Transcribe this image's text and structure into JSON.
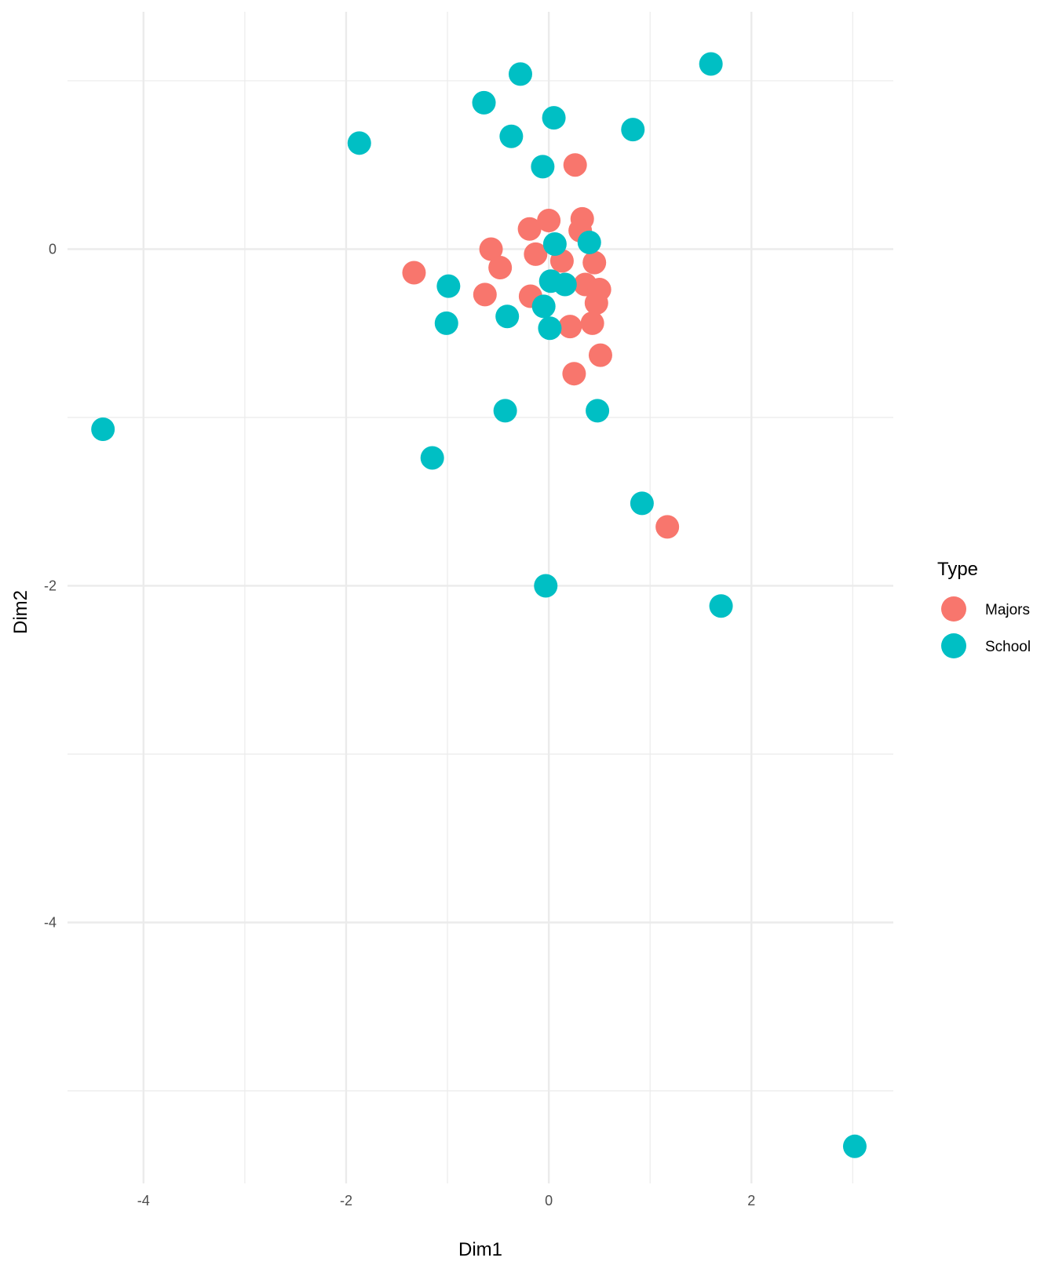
{
  "chart_data": {
    "type": "scatter",
    "title": "",
    "xlabel": "Dim1",
    "ylabel": "Dim2",
    "xlim": [
      -4.75,
      3.4
    ],
    "ylim": [
      -5.55,
      1.41
    ],
    "x_ticks": [
      -4,
      -2,
      0,
      2
    ],
    "x_tick_labels": [
      "-4",
      "-2",
      "0",
      "2"
    ],
    "y_ticks": [
      -4,
      -2,
      0
    ],
    "y_tick_labels": [
      "-4",
      "-2",
      "0"
    ],
    "x_minor_grid": [
      -3,
      -1,
      1,
      3
    ],
    "y_minor_grid": [
      -5,
      -3,
      -1,
      1
    ],
    "grid": true,
    "legend_position": "right",
    "legend": {
      "title": "Type",
      "entries": [
        {
          "label": "Majors",
          "color": "#F8766D"
        },
        {
          "label": "School",
          "color": "#00BFC4"
        }
      ]
    },
    "series": [
      {
        "name": "Majors",
        "color": "#F8766D",
        "points": [
          [
            0.26,
            0.5
          ],
          [
            0.0,
            0.17
          ],
          [
            -0.19,
            0.12
          ],
          [
            0.33,
            0.18
          ],
          [
            0.31,
            0.11
          ],
          [
            -0.57,
            0.0
          ],
          [
            -0.13,
            -0.03
          ],
          [
            0.13,
            -0.07
          ],
          [
            0.45,
            -0.08
          ],
          [
            -0.48,
            -0.11
          ],
          [
            -1.33,
            -0.14
          ],
          [
            0.36,
            -0.21
          ],
          [
            0.5,
            -0.24
          ],
          [
            -0.63,
            -0.27
          ],
          [
            -0.18,
            -0.28
          ],
          [
            0.47,
            -0.32
          ],
          [
            0.21,
            -0.46
          ],
          [
            0.43,
            -0.44
          ],
          [
            0.51,
            -0.63
          ],
          [
            0.25,
            -0.74
          ],
          [
            1.17,
            -1.65
          ]
        ]
      },
      {
        "name": "School",
        "color": "#00BFC4",
        "points": [
          [
            1.6,
            1.1
          ],
          [
            -0.28,
            1.04
          ],
          [
            -0.64,
            0.87
          ],
          [
            0.05,
            0.78
          ],
          [
            0.83,
            0.71
          ],
          [
            -0.37,
            0.67
          ],
          [
            -1.87,
            0.63
          ],
          [
            -0.06,
            0.49
          ],
          [
            0.06,
            0.03
          ],
          [
            0.4,
            0.04
          ],
          [
            0.02,
            -0.19
          ],
          [
            0.16,
            -0.21
          ],
          [
            -0.99,
            -0.22
          ],
          [
            -0.05,
            -0.34
          ],
          [
            -0.41,
            -0.4
          ],
          [
            -1.01,
            -0.44
          ],
          [
            0.01,
            -0.47
          ],
          [
            -0.43,
            -0.96
          ],
          [
            0.48,
            -0.96
          ],
          [
            -4.4,
            -1.07
          ],
          [
            -1.15,
            -1.24
          ],
          [
            0.92,
            -1.51
          ],
          [
            -0.03,
            -2.0
          ],
          [
            1.7,
            -2.12
          ],
          [
            3.02,
            -5.33
          ]
        ]
      }
    ]
  },
  "style": {
    "background": "#FFFFFF",
    "grid_major_color": "#EBEBEB",
    "grid_minor_color": "#EBEBEB",
    "tick_label_color": "#4D4D4D",
    "point_radius": 15
  }
}
